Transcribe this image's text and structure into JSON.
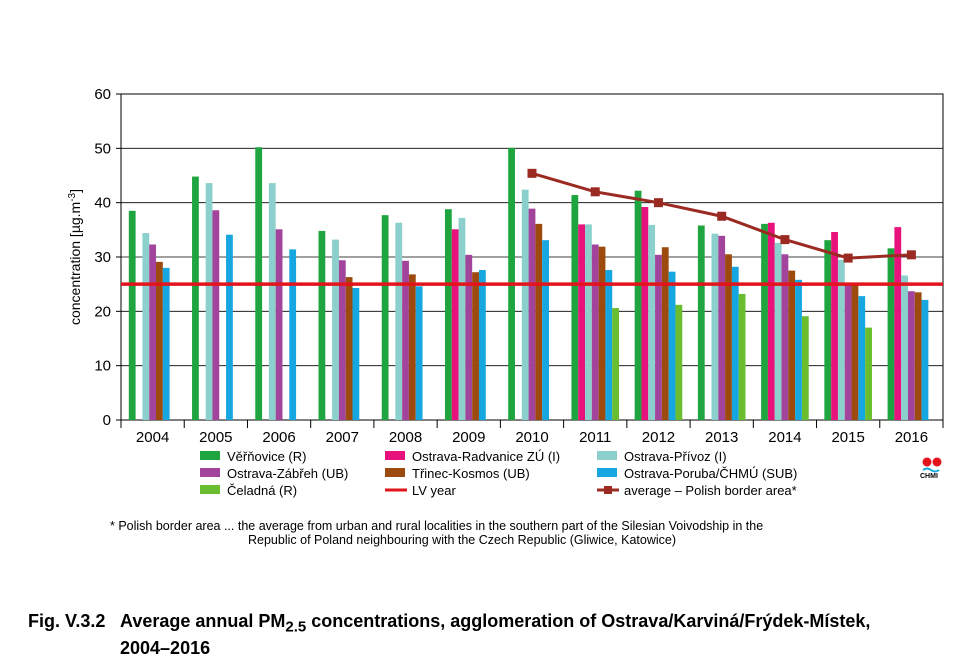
{
  "chart_data": {
    "type": "bar",
    "ylabel": "concentration [µg.m",
    "ylabel_sup": "-3",
    "ylabel_close": "]",
    "ylim": [
      0,
      60
    ],
    "yticks": [
      0,
      10,
      20,
      30,
      40,
      50,
      60
    ],
    "grid": true,
    "legend_position": "bottom",
    "categories": [
      "2004",
      "2005",
      "2006",
      "2007",
      "2008",
      "2009",
      "2010",
      "2011",
      "2012",
      "2013",
      "2014",
      "2015",
      "2016"
    ],
    "series": [
      {
        "name": "Věřňovice (R)",
        "color": "#1fa540",
        "values": [
          38.5,
          44.8,
          50.2,
          34.8,
          37.7,
          38.8,
          50.1,
          41.4,
          42.2,
          35.8,
          36.1,
          33.1,
          31.6
        ]
      },
      {
        "name": "Ostrava-Radvanice ZÚ (I)",
        "color": "#e8127c",
        "values": [
          null,
          null,
          null,
          null,
          null,
          35.1,
          null,
          36.0,
          39.2,
          null,
          36.3,
          34.6,
          35.5
        ]
      },
      {
        "name": "Ostrava-Přívoz (I)",
        "color": "#8bd0cc",
        "values": [
          34.4,
          43.6,
          43.6,
          33.2,
          36.3,
          37.2,
          42.4,
          36.0,
          35.9,
          34.3,
          32.6,
          29.5,
          26.6
        ]
      },
      {
        "name": "Ostrava-Zábřeh (UB)",
        "color": "#a2449b",
        "values": [
          32.3,
          38.6,
          35.1,
          29.4,
          29.3,
          30.4,
          38.9,
          32.3,
          30.4,
          33.9,
          30.5,
          25.3,
          23.7
        ]
      },
      {
        "name": "Třinec-Kosmos (UB)",
        "color": "#9c4a0e",
        "values": [
          29.1,
          null,
          null,
          26.3,
          26.8,
          27.2,
          36.1,
          31.9,
          31.8,
          30.5,
          27.5,
          24.9,
          23.5
        ]
      },
      {
        "name": "Ostrava-Poruba/ČHMÚ (SUB)",
        "color": "#16a7e0",
        "values": [
          28.0,
          34.1,
          31.4,
          24.3,
          24.6,
          27.6,
          33.1,
          27.6,
          27.3,
          28.2,
          25.8,
          22.8,
          22.1
        ]
      },
      {
        "name": "Čeladná (R)",
        "color": "#6abd2f",
        "values": [
          null,
          null,
          null,
          null,
          null,
          null,
          null,
          20.6,
          21.2,
          23.2,
          19.1,
          17.0,
          null
        ]
      }
    ],
    "lv_line": {
      "name": "LV year",
      "color": "#e3141b",
      "value": 25
    },
    "average_line": {
      "name": "average  – Polish border area*",
      "color": "#9b2a22",
      "x": [
        "2010",
        "2011",
        "2012",
        "2013",
        "2014",
        "2015",
        "2016"
      ],
      "values": [
        45.4,
        42.0,
        40.0,
        37.5,
        33.2,
        29.8,
        30.4
      ]
    }
  },
  "footnote": {
    "line1": "* Polish border area ... the average from urban and rural localities in the southern part of the Silesian Voivodship in the",
    "line2": "Republic of Poland neighbouring with the Czech Republic (Gliwice, Katowice)"
  },
  "caption": {
    "label": "Fig. V.3.2",
    "text_a": "Average annual PM",
    "text_sub": "2.5",
    "text_b": " concentrations, agglomeration of Ostrava/Karviná/Frýdek-Místek,",
    "line2": "2004–2016"
  },
  "logo": {
    "text": "CHMI"
  }
}
